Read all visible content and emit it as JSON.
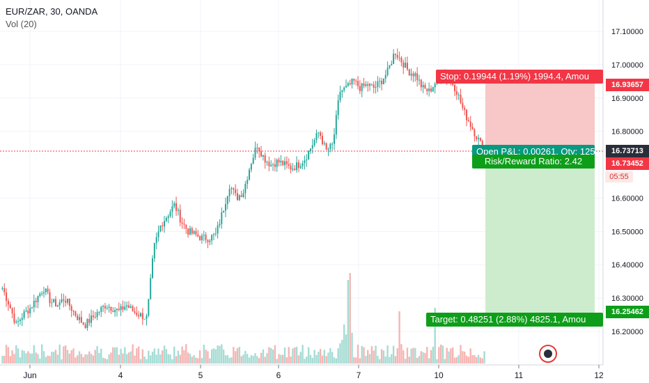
{
  "legend": {
    "symbol": "EUR/ZAR, 30, OANDA",
    "indicator": "Vol (20)"
  },
  "price_axis": {
    "ticks": [
      "17.10000",
      "17.00000",
      "16.90000",
      "16.80000",
      "16.60000",
      "16.50000",
      "16.40000",
      "16.30000",
      "16.20000"
    ]
  },
  "time_axis": {
    "ticks": [
      "Jun",
      "4",
      "5",
      "6",
      "7",
      "10",
      "11",
      "12"
    ]
  },
  "position": {
    "stop_label": "Stop: 0.19944 (1.19%) 1994.4, Amou",
    "open_pl_label": "Open P&L: 0.00261, Qty: 125",
    "risk_reward_label": "Risk/Reward Ratio: 2.42",
    "target_label": "Target: 0.48251 (2.88%) 4825.1, Amou",
    "stop_price": "16.93657",
    "current_price": "16.73713",
    "entry_price": "16.73452",
    "target_price": "16.25462",
    "countdown": "05:55"
  },
  "colors": {
    "up": "#26a69a",
    "down": "#ef5350",
    "stop_zone": "#f8c7c7",
    "target_zone": "#cdeccd",
    "stop_tag": "#f23645",
    "profit_tag": "#089981",
    "current_tag": "#2a2e39",
    "target_tag": "#0e9e1a"
  },
  "chart_data": {
    "type": "candlestick",
    "title": "EUR/ZAR, 30, OANDA",
    "ylim": [
      16.12,
      17.18
    ],
    "closes_sketch": [
      16.33,
      16.28,
      16.22,
      16.25,
      16.27,
      16.3,
      16.33,
      16.29,
      16.28,
      16.3,
      16.27,
      16.24,
      16.22,
      16.24,
      16.26,
      16.28,
      16.27,
      16.26,
      16.28,
      16.26,
      16.25,
      16.24,
      16.45,
      16.52,
      16.55,
      16.58,
      16.53,
      16.5,
      16.49,
      16.48,
      16.48,
      16.49,
      16.56,
      16.64,
      16.6,
      16.62,
      16.7,
      16.76,
      16.72,
      16.7,
      16.71,
      16.7,
      16.69,
      16.7,
      16.72,
      16.76,
      16.8,
      16.74,
      16.76,
      16.92,
      16.93,
      16.95,
      16.93,
      16.94,
      16.93,
      16.95,
      16.98,
      17.04,
      17.01,
      16.98,
      16.97,
      16.93,
      16.92,
      16.95,
      16.97,
      16.96,
      16.92,
      16.86,
      16.82,
      16.78,
      16.74
    ]
  }
}
